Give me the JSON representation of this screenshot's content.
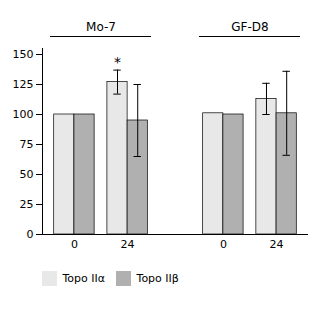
{
  "chart_data": {
    "type": "bar",
    "categories": [
      "0",
      "24",
      "0",
      "24"
    ],
    "category_groups": [
      "Mo-7",
      "Mo-7",
      "GF-D8",
      "GF-D8"
    ],
    "series": [
      {
        "name": "Topo IIα",
        "color": "#e8e8e8",
        "values": [
          100,
          127,
          101,
          113
        ],
        "errors": [
          0,
          10,
          0,
          13
        ]
      },
      {
        "name": "Topo IIβ",
        "color": "#b0b0b0",
        "values": [
          100,
          95,
          100,
          101
        ],
        "errors": [
          0,
          30,
          0,
          35
        ]
      }
    ],
    "annotations": [
      {
        "text": "*",
        "series": "Topo IIα",
        "index": 1
      }
    ],
    "ylim": [
      0,
      155
    ],
    "yticks": [
      0,
      25,
      50,
      75,
      100,
      125,
      150
    ],
    "legend": "bottom",
    "grid": false
  }
}
